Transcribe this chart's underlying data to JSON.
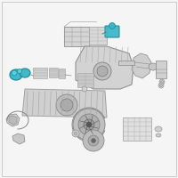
{
  "bg_color": "#f5f5f5",
  "border_color": "#bbbbbb",
  "fig_width": 2.0,
  "fig_height": 2.0,
  "dpi": 100,
  "line_color": "#888888",
  "dark_line": "#555555",
  "highlight_color": "#3ab5c6",
  "highlight_edge": "#1a8a9a",
  "part_fill": "#d8d8d8",
  "part_edge": "#888888"
}
